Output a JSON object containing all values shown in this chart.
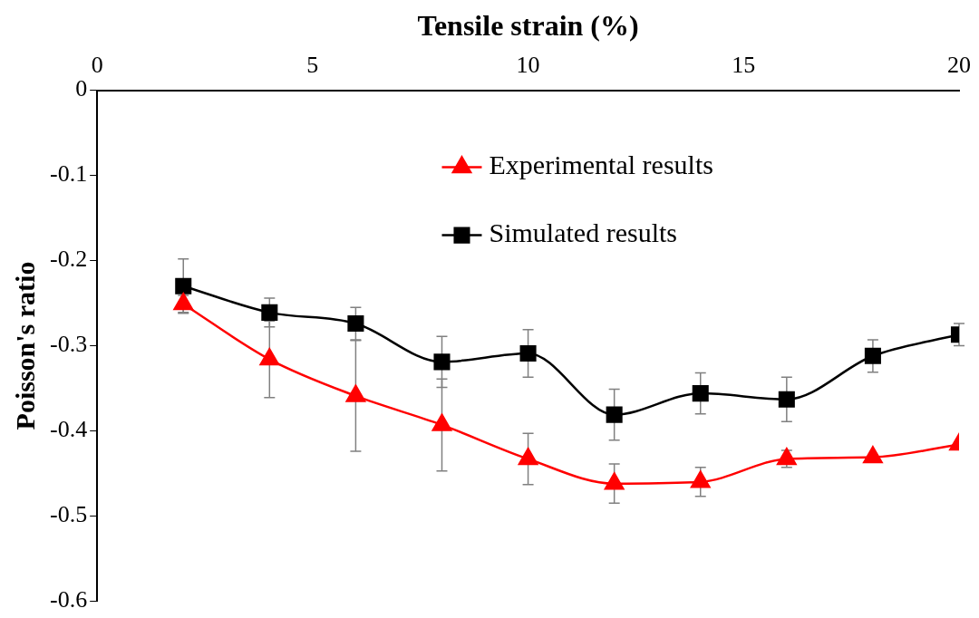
{
  "chart_data": {
    "type": "line",
    "xlabel": "Tensile strain (%)",
    "ylabel": "Poisson's ratio",
    "x": [
      2,
      4,
      6,
      8,
      10,
      12,
      14,
      16,
      18,
      20
    ],
    "xlim": [
      0,
      20
    ],
    "xticks": [
      0,
      5,
      10,
      15,
      20
    ],
    "ylim": [
      -0.6,
      0
    ],
    "yticks": [
      0,
      -0.1,
      -0.2,
      -0.3,
      -0.4,
      -0.5,
      -0.6
    ],
    "grid": false,
    "legend": "top right",
    "series": [
      {
        "name": "Experimental results",
        "color": "#ff0000",
        "marker": "triangle",
        "values": [
          -0.251,
          -0.316,
          -0.359,
          -0.393,
          -0.433,
          -0.462,
          -0.46,
          -0.433,
          -0.431,
          -0.416
        ],
        "errors": [
          0.01,
          0.045,
          0.065,
          0.054,
          0.03,
          0.023,
          0.017,
          0.01,
          null,
          null
        ]
      },
      {
        "name": "Simulated results",
        "color": "#000000",
        "marker": "square",
        "values": [
          -0.23,
          -0.261,
          -0.274,
          -0.319,
          -0.309,
          -0.381,
          -0.356,
          -0.363,
          -0.312,
          -0.287
        ],
        "errors": [
          0.032,
          0.017,
          0.019,
          0.03,
          0.028,
          0.03,
          0.024,
          0.026,
          0.019,
          0.013
        ]
      }
    ]
  }
}
